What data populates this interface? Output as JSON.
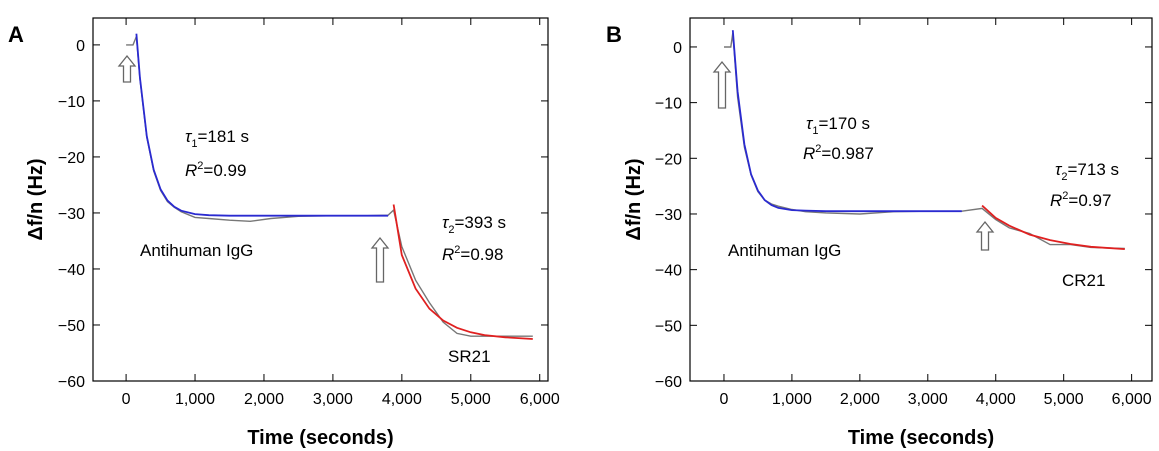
{
  "chart_data": [
    {
      "type": "line",
      "panel": "A",
      "x_label": "Time (seconds)",
      "y_label": "Δf/n (Hz)",
      "xlim": [
        -480,
        6120
      ],
      "ylim": [
        -60,
        4.8
      ],
      "xticks": [
        0,
        {
          "value": 1000,
          "label": "1,000"
        },
        {
          "value": 2000,
          "label": "2,000"
        },
        {
          "value": 3000,
          "label": "3,000"
        },
        {
          "value": 4000,
          "label": "4,000"
        },
        {
          "value": 5000,
          "label": "5,000"
        },
        {
          "value": 6000,
          "label": "6,000"
        }
      ],
      "yticks": [
        0,
        {
          "value": -10,
          "label": "−10"
        },
        {
          "value": -20,
          "label": "−20"
        },
        {
          "value": -30,
          "label": "−30"
        },
        {
          "value": -40,
          "label": "−40"
        },
        {
          "value": -50,
          "label": "−50"
        },
        {
          "value": -60,
          "label": "−60"
        }
      ],
      "x": [
        0,
        100,
        150,
        200,
        300,
        400,
        500,
        600,
        700,
        800,
        1000,
        1200,
        1500,
        1800,
        2100,
        2500,
        3000,
        3500,
        3800,
        3880,
        4000,
        4200,
        4400,
        4600,
        4800,
        5000,
        5200,
        5500,
        5900
      ],
      "series": [
        {
          "color": "#777777",
          "values": [
            0,
            0,
            1.5,
            -6,
            -16.5,
            -22.5,
            -26,
            -28,
            -29,
            -29.8,
            -30.8,
            -31,
            -31.3,
            -31.5,
            -31,
            -30.6,
            -30.5,
            -30.5,
            -30.4,
            -29.5,
            -36,
            -42,
            -46,
            -49.5,
            -51.5,
            -52,
            -52,
            -52,
            -52
          ]
        },
        {
          "color": "#2a2ad0",
          "values": [
            null,
            null,
            2,
            -5.8,
            -16.3,
            -22.3,
            -25.8,
            -27.8,
            -28.9,
            -29.6,
            -30.2,
            -30.4,
            -30.5,
            -30.5,
            -30.5,
            -30.5,
            -30.5,
            -30.5,
            -30.5,
            null,
            null,
            null,
            null,
            null,
            null,
            null,
            null,
            null,
            null
          ]
        },
        {
          "color": "#e02020",
          "values": [
            null,
            null,
            null,
            null,
            null,
            null,
            null,
            null,
            null,
            null,
            null,
            null,
            null,
            null,
            null,
            null,
            null,
            null,
            null,
            -28.5,
            -37.5,
            -43.5,
            -47.1,
            -49.2,
            -50.5,
            -51.3,
            -51.8,
            -52.2,
            -52.5
          ]
        }
      ],
      "annotations": {
        "tau1": {
          "symbol": "τ",
          "sub": "1",
          "text": "=181 s"
        },
        "r1": {
          "symbol": "R",
          "sup": "2",
          "text": "=0.99"
        },
        "first": "Antihuman IgG",
        "tau2": {
          "symbol": "τ",
          "sub": "2",
          "text": "=393 s"
        },
        "r2": {
          "symbol": "R",
          "sup": "2",
          "text": "=0.98"
        },
        "second": "SR21"
      }
    },
    {
      "type": "line",
      "panel": "B",
      "x_label": "Time (seconds)",
      "y_label": "Δf/n (Hz)",
      "xlim": [
        -500,
        6300
      ],
      "ylim": [
        -60,
        5.2
      ],
      "xticks": [
        0,
        {
          "value": 1000,
          "label": "1,000"
        },
        {
          "value": 2000,
          "label": "2,000"
        },
        {
          "value": 3000,
          "label": "3,000"
        },
        {
          "value": 4000,
          "label": "4,000"
        },
        {
          "value": 5000,
          "label": "5,000"
        },
        {
          "value": 6000,
          "label": "6,000"
        }
      ],
      "yticks": [
        0,
        {
          "value": -10,
          "label": "−10"
        },
        {
          "value": -20,
          "label": "−20"
        },
        {
          "value": -30,
          "label": "−30"
        },
        {
          "value": -40,
          "label": "−40"
        },
        {
          "value": -50,
          "label": "−50"
        },
        {
          "value": -60,
          "label": "−60"
        }
      ],
      "x": [
        0,
        100,
        130,
        200,
        300,
        400,
        500,
        600,
        700,
        800,
        1000,
        1200,
        1500,
        2000,
        2500,
        3000,
        3500,
        3800,
        4000,
        4200,
        4500,
        4800,
        5100,
        5400,
        5900
      ],
      "series": [
        {
          "color": "#777777",
          "values": [
            0,
            0,
            2.5,
            -9,
            -18,
            -23,
            -26,
            -27.5,
            -28.2,
            -28.6,
            -29.2,
            -29.6,
            -29.8,
            -30,
            -29.6,
            -29.5,
            -29.5,
            -29,
            -31,
            -32.5,
            -33.5,
            -35.5,
            -35.5,
            -36,
            -36.2
          ]
        },
        {
          "color": "#2a2ad0",
          "values": [
            null,
            null,
            3,
            -8,
            -17.5,
            -22.9,
            -25.8,
            -27.5,
            -28.4,
            -28.9,
            -29.3,
            -29.4,
            -29.5,
            -29.5,
            -29.5,
            -29.5,
            -29.5,
            null,
            null,
            null,
            null,
            null,
            null,
            null,
            null
          ]
        },
        {
          "color": "#e02020",
          "values": [
            null,
            null,
            null,
            null,
            null,
            null,
            null,
            null,
            null,
            null,
            null,
            null,
            null,
            null,
            null,
            null,
            null,
            -28.5,
            -30.7,
            -32.1,
            -33.7,
            -34.7,
            -35.4,
            -35.9,
            -36.3
          ]
        }
      ],
      "annotations": {
        "tau1": {
          "symbol": "τ",
          "sub": "1",
          "text": "=170 s"
        },
        "r1": {
          "symbol": "R",
          "sup": "2",
          "text": "=0.987"
        },
        "first": "Antihuman IgG",
        "tau2": {
          "symbol": "τ",
          "sub": "2",
          "text": "=713 s"
        },
        "r2": {
          "symbol": "R",
          "sup": "2",
          "text": "=0.97"
        },
        "second": "CR21"
      }
    }
  ]
}
